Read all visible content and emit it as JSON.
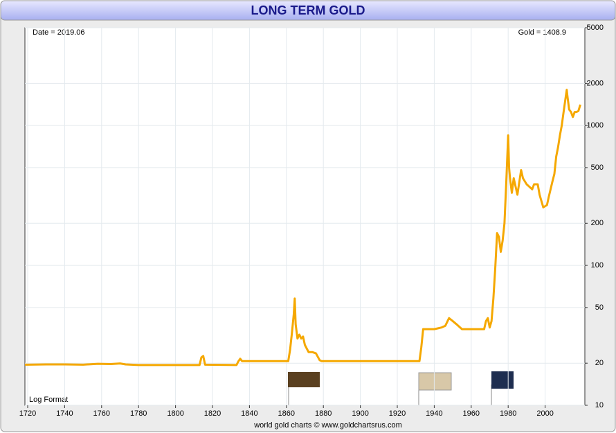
{
  "chart_data": {
    "type": "line",
    "title": "LONG TERM GOLD",
    "annotations": {
      "date": "Date = 2019.06",
      "gold": "Gold = 1408.9",
      "format": "Log Format",
      "footer": "world gold charts © www.goldchartsrus.com"
    },
    "log_y": true,
    "grid": true,
    "xlim": [
      1718.5,
      2021.5
    ],
    "xticks": [
      1720,
      1740,
      1760,
      1780,
      1800,
      1820,
      1840,
      1860,
      1880,
      1900,
      1920,
      1940,
      1960,
      1980,
      2000
    ],
    "ylim": [
      10,
      5000
    ],
    "yticks": [
      10,
      20,
      50,
      100,
      200,
      500,
      1000,
      2000,
      5000
    ],
    "series": [
      {
        "name": "Gold",
        "color": "#f5a800",
        "x": [
          1718.5,
          1720,
          1730,
          1740,
          1750,
          1758,
          1765,
          1770,
          1773,
          1780,
          1800,
          1813,
          1814,
          1815,
          1816,
          1833,
          1834,
          1835,
          1836,
          1860,
          1861,
          1862,
          1863,
          1864,
          1864.5,
          1865,
          1866,
          1867,
          1868,
          1869,
          1870,
          1872,
          1874,
          1876,
          1878,
          1879,
          1932,
          1933,
          1934,
          1940,
          1944,
          1946,
          1948,
          1950,
          1952,
          1955,
          1960,
          1965,
          1967,
          1968,
          1969,
          1970,
          1971,
          1972,
          1973,
          1974,
          1975,
          1976,
          1977,
          1978,
          1979,
          1980,
          1980.5,
          1981,
          1982,
          1983,
          1985,
          1987,
          1988,
          1990,
          1993,
          1994,
          1996,
          1997,
          1999,
          2001,
          2002,
          2004,
          2005,
          2006,
          2007,
          2008,
          2009,
          2010,
          2011,
          2011.7,
          2012,
          2013,
          2014,
          2015,
          2016,
          2017,
          2018,
          2019.06
        ],
        "values": [
          19.5,
          19.5,
          19.6,
          19.6,
          19.5,
          19.8,
          19.7,
          19.9,
          19.6,
          19.4,
          19.4,
          19.4,
          22,
          22.5,
          19.5,
          19.4,
          20.6,
          21.5,
          20.7,
          20.7,
          20.7,
          25,
          33,
          45,
          58,
          38,
          30,
          32,
          30,
          31,
          27,
          24,
          24,
          23.5,
          21,
          20.7,
          20.7,
          26,
          35,
          35,
          36,
          37,
          42,
          40,
          38,
          35,
          35,
          35,
          35,
          40,
          42,
          36,
          40,
          58,
          95,
          170,
          160,
          125,
          150,
          200,
          400,
          850,
          500,
          420,
          330,
          420,
          320,
          480,
          420,
          380,
          350,
          380,
          380,
          320,
          260,
          270,
          310,
          400,
          450,
          600,
          700,
          850,
          1000,
          1250,
          1550,
          1800,
          1650,
          1300,
          1250,
          1150,
          1250,
          1250,
          1270,
          1408.9
        ]
      }
    ]
  }
}
